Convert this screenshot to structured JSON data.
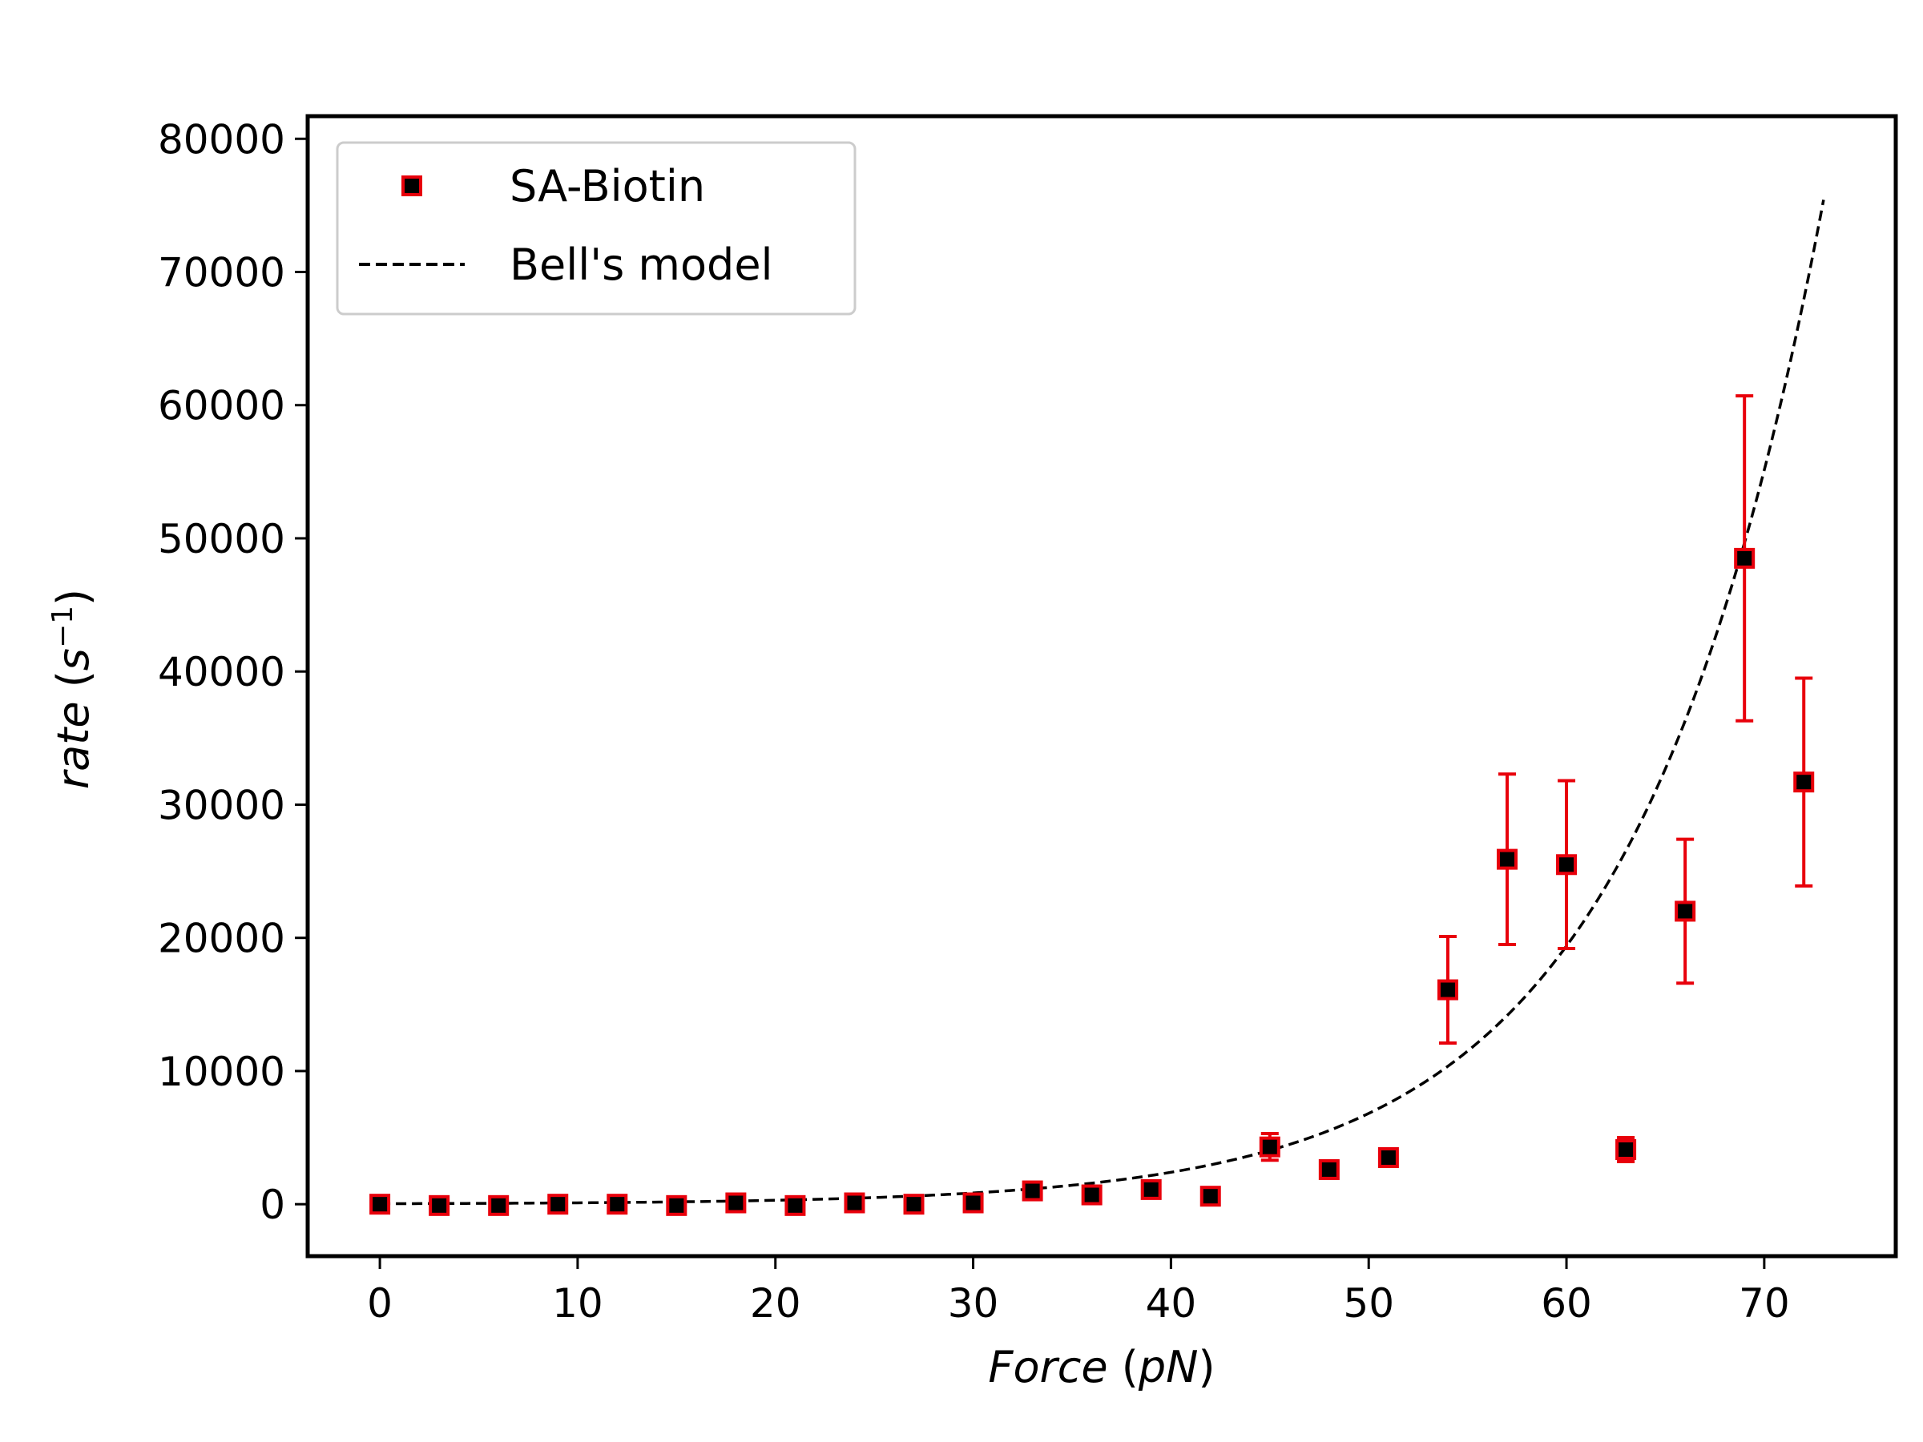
{
  "chart_data": {
    "type": "scatter",
    "xlabel": {
      "var": "Force",
      "open": " (",
      "unit": "pN",
      "close": ")"
    },
    "ylabel": {
      "var": "rate",
      "open": " (",
      "unit": "s",
      "sup": "−1",
      "close": ")"
    },
    "xlim": [
      -3.65,
      76.65
    ],
    "ylim": [
      -3900,
      81700
    ],
    "xticks": [
      0,
      10,
      20,
      30,
      40,
      50,
      60,
      70
    ],
    "yticks": [
      0,
      10000,
      20000,
      30000,
      40000,
      50000,
      60000,
      70000,
      80000
    ],
    "grid": false,
    "legend": {
      "position": "top-left"
    },
    "series": [
      {
        "name": "SA-Biotin",
        "kind": "errorbar-markers",
        "marker": "square",
        "marker_face": "#000000",
        "marker_edge": "#e8000b",
        "error_color": "#e8000b",
        "x": [
          0,
          3,
          6,
          9,
          12,
          15,
          18,
          21,
          24,
          27,
          30,
          33,
          36,
          39,
          42,
          45,
          48,
          51,
          54,
          57,
          60,
          63,
          66,
          69,
          72
        ],
        "y": [
          0,
          -100,
          -100,
          0,
          0,
          -100,
          100,
          -100,
          100,
          0,
          100,
          1000,
          700,
          1100,
          600,
          4300,
          2600,
          3500,
          16100,
          25900,
          25500,
          4100,
          22000,
          48500,
          31700
        ],
        "yerr": [
          200,
          150,
          150,
          200,
          200,
          150,
          250,
          150,
          200,
          200,
          250,
          500,
          500,
          550,
          400,
          1000,
          400,
          600,
          4000,
          6400,
          6300,
          900,
          5400,
          12200,
          7800
        ]
      },
      {
        "name": "Bell's model",
        "kind": "dashed-line",
        "color": "#000000",
        "model": "exponential",
        "k0": 36.7,
        "f_scale": 9.57,
        "x_range": [
          0,
          73
        ]
      }
    ]
  }
}
